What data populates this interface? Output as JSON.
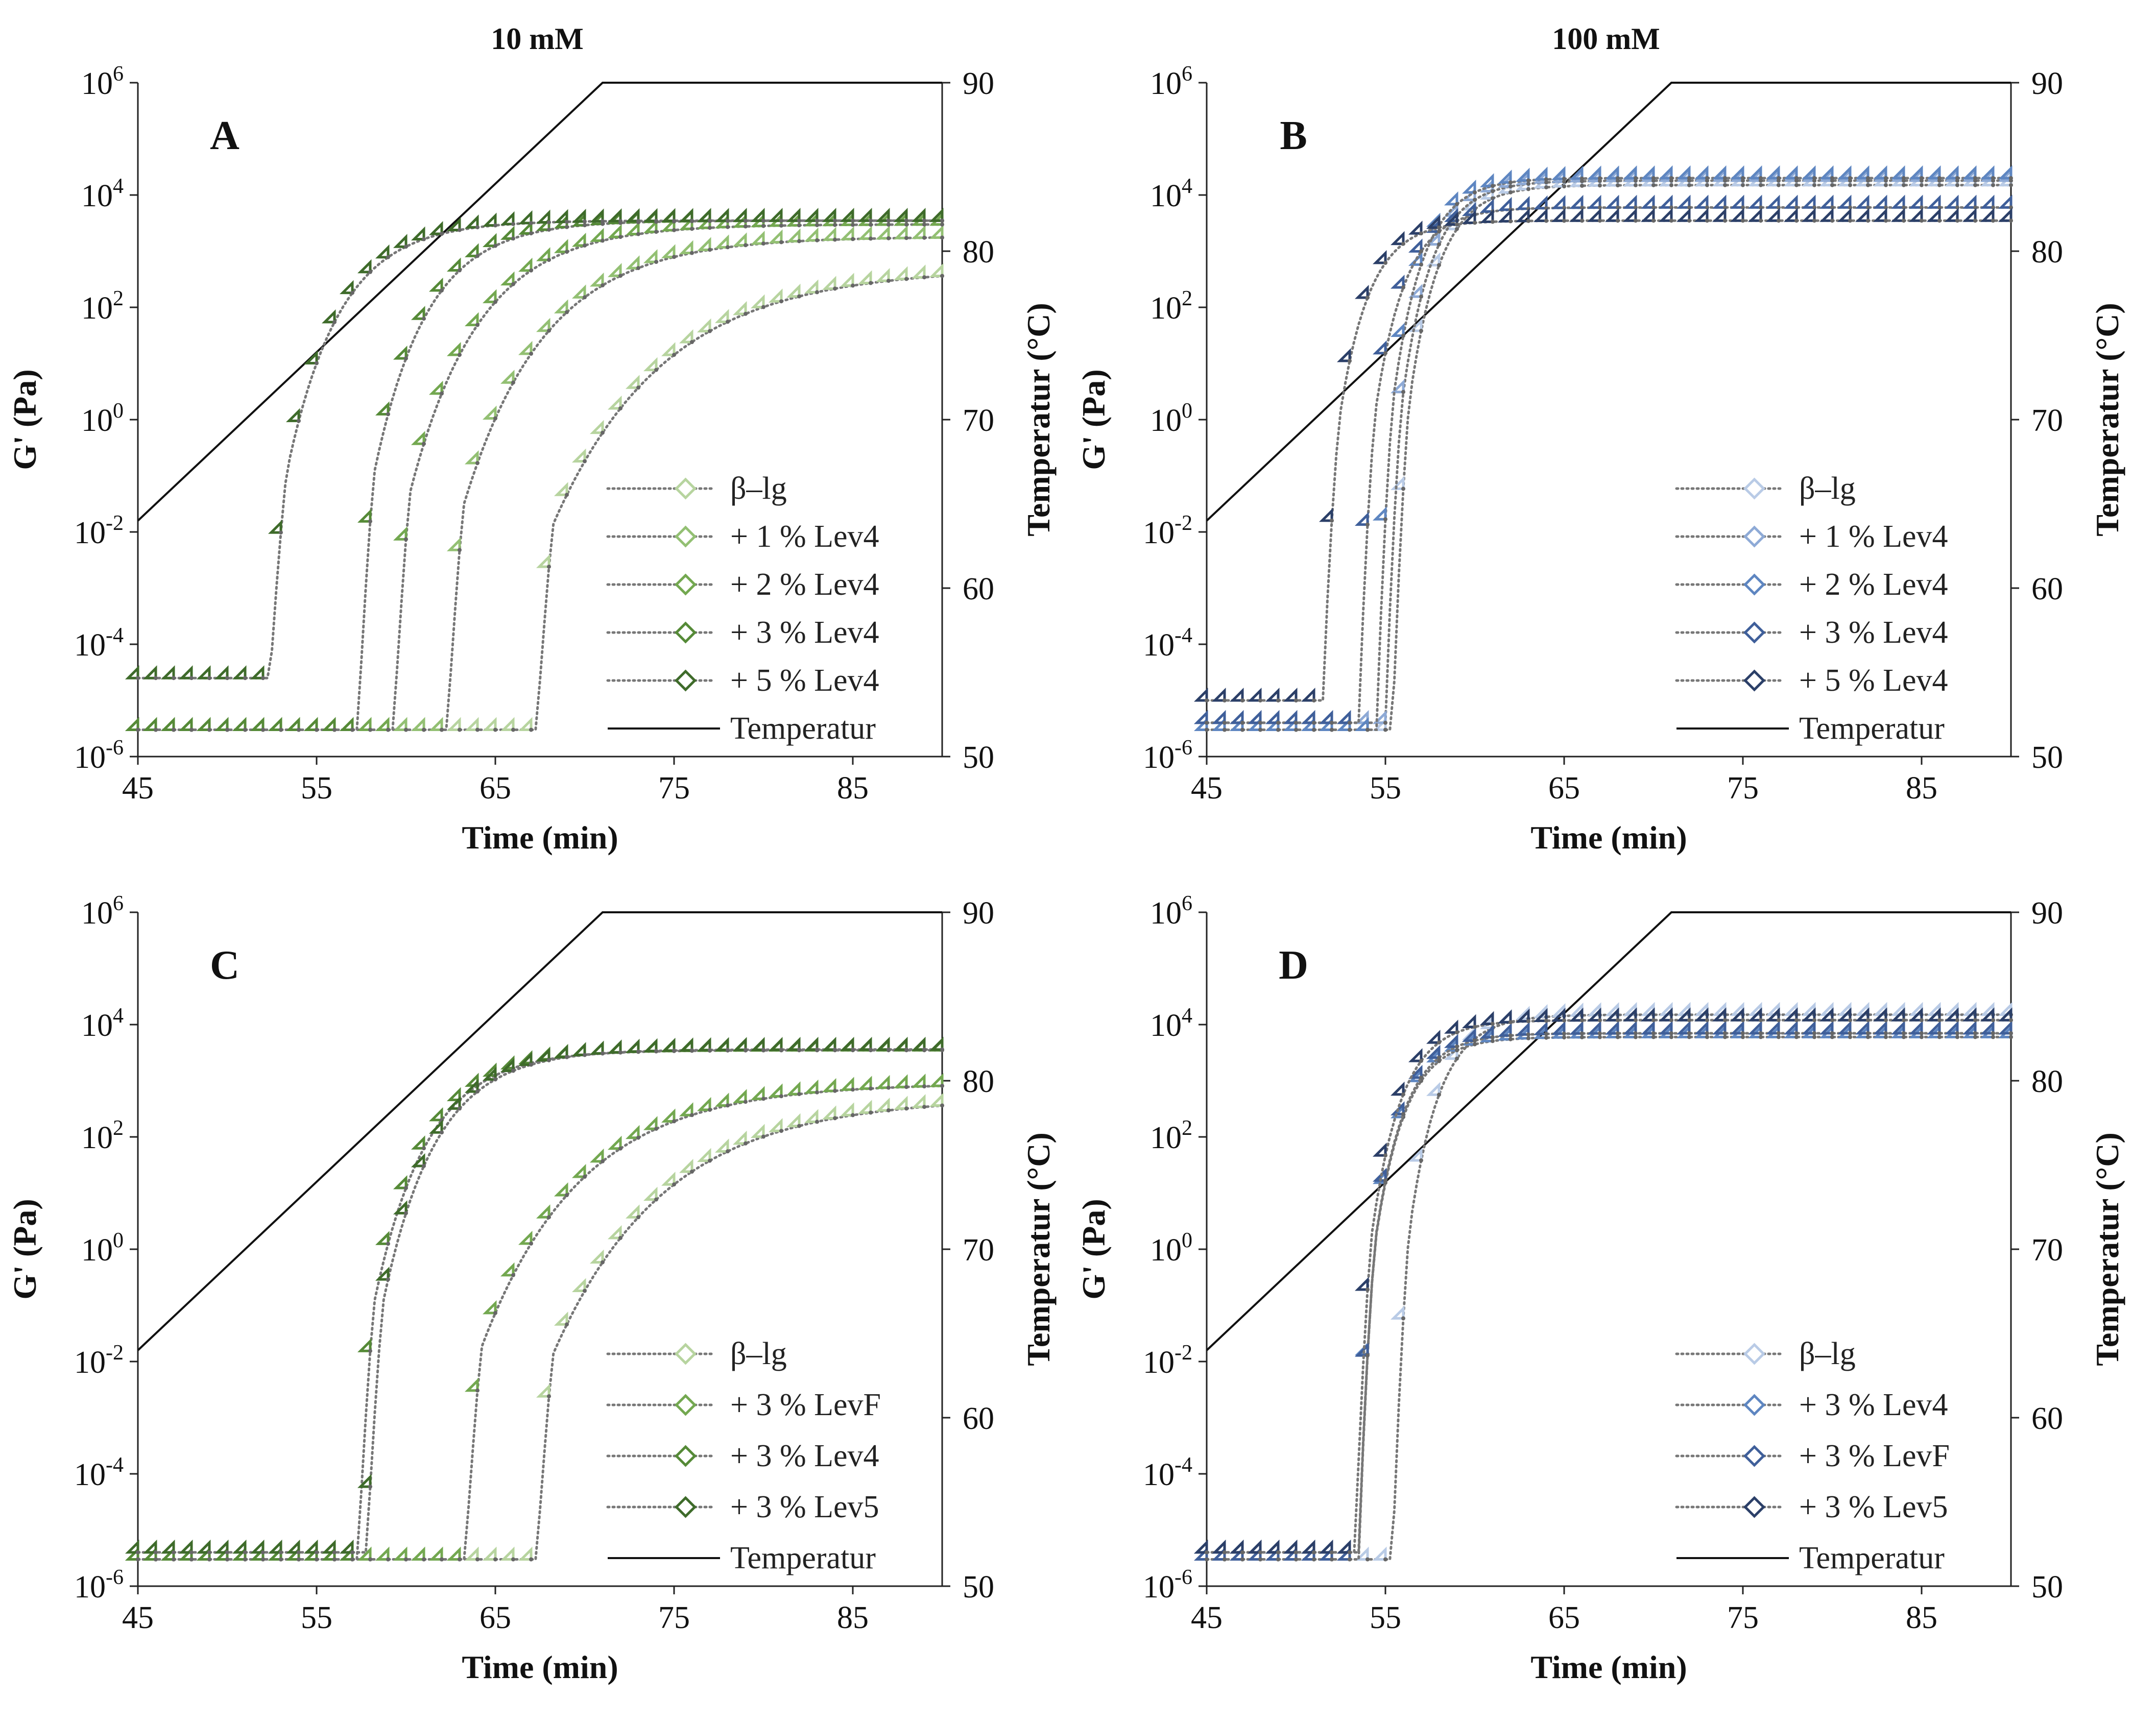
{
  "column_titles": [
    "10 mM",
    "100 mM"
  ],
  "colors": {
    "green": [
      "#b7d49f",
      "#93c073",
      "#73a850",
      "#558a37",
      "#3e6b2a"
    ],
    "blue": [
      "#b9cbe6",
      "#8eaad6",
      "#5e86c1",
      "#3f5f9a",
      "#2b3f68"
    ],
    "temperature_line": "#111111",
    "marker_stroke_dots": "#777777"
  },
  "chart_data": [
    {
      "id": "A",
      "type": "line",
      "panel_label": "A",
      "xlabel": "Time (min)",
      "ylabel": "G' (Pa)",
      "y2label": "Temperatur (°C)",
      "xlim": [
        45,
        90
      ],
      "xticks": [
        "45",
        "55",
        "65",
        "75",
        "85"
      ],
      "y_log_exponents": [
        -6,
        -4,
        -2,
        0,
        2,
        4,
        6
      ],
      "y2lim": [
        50,
        90
      ],
      "y2ticks": [
        "50",
        "60",
        "70",
        "80",
        "90"
      ],
      "temperature": {
        "label": "Temperatur",
        "x": [
          45,
          71,
          90
        ],
        "y": [
          64,
          90,
          90
        ]
      },
      "series": [
        {
          "name": "β–lg",
          "onset": 67.3,
          "pre": 3e-06,
          "plateau": 500,
          "rate": 0.16
        },
        {
          "name": "+ 1 % Lev4",
          "onset": 62.3,
          "pre": 3e-06,
          "plateau": 1800,
          "rate": 0.22
        },
        {
          "name": "+ 2 % Lev4",
          "onset": 59.3,
          "pre": 3e-06,
          "plateau": 3000,
          "rate": 0.26
        },
        {
          "name": "+ 3 % Lev4",
          "onset": 57.3,
          "pre": 3e-06,
          "plateau": 3500,
          "rate": 0.34
        },
        {
          "name": "+ 5 % Lev4",
          "onset": 52.4,
          "pre": 2.5e-05,
          "plateau": 3500,
          "rate": 0.34
        }
      ]
    },
    {
      "id": "B",
      "type": "line",
      "panel_label": "B",
      "xlabel": "Time (min)",
      "ylabel": "G' (Pa)",
      "y2label": "Temperatur (°C)",
      "xlim": [
        45,
        90
      ],
      "xticks": [
        "45",
        "55",
        "65",
        "75",
        "85"
      ],
      "y_log_exponents": [
        -6,
        -4,
        -2,
        0,
        2,
        4,
        6
      ],
      "y2lim": [
        50,
        90
      ],
      "y2ticks": [
        "50",
        "60",
        "70",
        "80",
        "90"
      ],
      "temperature": {
        "label": "Temperatur",
        "x": [
          45,
          71,
          90
        ],
        "y": [
          64,
          90,
          90
        ]
      },
      "series": [
        {
          "name": "β–lg",
          "onset": 55.4,
          "pre": 3e-06,
          "plateau": 15000,
          "rate": 0.6
        },
        {
          "name": "+ 1 % Lev4",
          "onset": 55.0,
          "pre": 4e-06,
          "plateau": 18000,
          "rate": 0.6
        },
        {
          "name": "+ 2 % Lev4",
          "onset": 54.5,
          "pre": 3e-06,
          "plateau": 20000,
          "rate": 0.6
        },
        {
          "name": "+ 3 % Lev4",
          "onset": 53.5,
          "pre": 4e-06,
          "plateau": 6000,
          "rate": 0.6
        },
        {
          "name": "+ 5 % Lev4",
          "onset": 51.5,
          "pre": 1e-05,
          "plateau": 3500,
          "rate": 0.6
        }
      ]
    },
    {
      "id": "C",
      "type": "line",
      "panel_label": "C",
      "xlabel": "Time (min)",
      "ylabel": "G' (Pa)",
      "y2label": "Temperatur (°C)",
      "xlim": [
        45,
        90
      ],
      "xticks": [
        "45",
        "55",
        "65",
        "75",
        "85"
      ],
      "y_log_exponents": [
        -6,
        -4,
        -2,
        0,
        2,
        4,
        6
      ],
      "y2lim": [
        50,
        90
      ],
      "y2ticks": [
        "50",
        "60",
        "70",
        "80",
        "90"
      ],
      "temperature": {
        "label": "Temperatur",
        "x": [
          45,
          71,
          90
        ],
        "y": [
          64,
          90,
          90
        ]
      },
      "series": [
        {
          "name": "β–lg",
          "onset": 67.3,
          "pre": 3e-06,
          "plateau": 500,
          "rate": 0.16
        },
        {
          "name": "+ 3 % LevF",
          "onset": 63.3,
          "pre": 3e-06,
          "plateau": 900,
          "rate": 0.18
        },
        {
          "name": "+ 3 % Lev4",
          "onset": 57.3,
          "pre": 3e-06,
          "plateau": 3500,
          "rate": 0.34
        },
        {
          "name": "+ 3 % Lev5",
          "onset": 57.8,
          "pre": 4e-06,
          "plateau": 3600,
          "rate": 0.34
        }
      ]
    },
    {
      "id": "D",
      "type": "line",
      "panel_label": "D",
      "xlabel": "Time (min)",
      "ylabel": "G' (Pa)",
      "y2label": "Temperatur (°C)",
      "xlim": [
        45,
        90
      ],
      "xticks": [
        "45",
        "55",
        "65",
        "75",
        "85"
      ],
      "y_log_exponents": [
        -6,
        -4,
        -2,
        0,
        2,
        4,
        6
      ],
      "y2lim": [
        50,
        90
      ],
      "y2ticks": [
        "50",
        "60",
        "70",
        "80",
        "90"
      ],
      "temperature": {
        "label": "Temperatur",
        "x": [
          45,
          71,
          90
        ],
        "y": [
          64,
          90,
          90
        ]
      },
      "series": [
        {
          "name": "β–lg",
          "onset": 55.4,
          "pre": 3e-06,
          "plateau": 15000,
          "rate": 0.6
        },
        {
          "name": "+ 3 % Lev4",
          "onset": 53.5,
          "pre": 4e-06,
          "plateau": 6000,
          "rate": 0.6
        },
        {
          "name": "+ 3 % LevF",
          "onset": 53.5,
          "pre": 3e-06,
          "plateau": 7000,
          "rate": 0.6
        },
        {
          "name": "+ 3 % Lev5",
          "onset": 53.3,
          "pre": 4e-06,
          "plateau": 12000,
          "rate": 0.6
        }
      ]
    }
  ]
}
